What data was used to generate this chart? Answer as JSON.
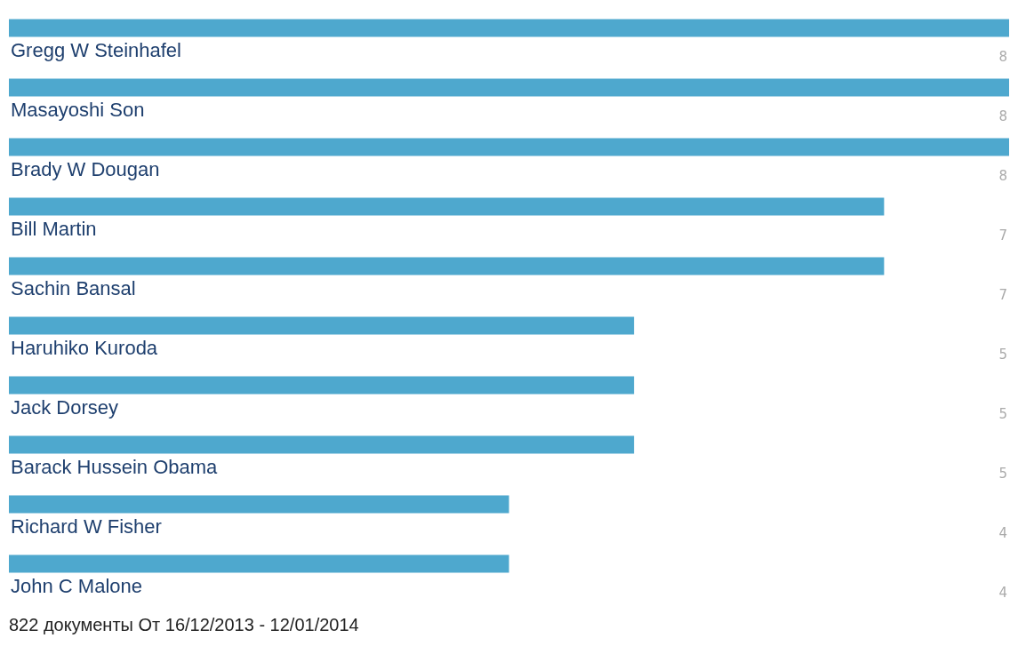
{
  "chart_data": {
    "type": "bar",
    "orientation": "horizontal",
    "categories": [
      "Gregg W Steinhafel",
      "Masayoshi Son",
      "Brady W Dougan",
      "Bill Martin",
      "Sachin Bansal",
      "Haruhiko Kuroda",
      "Jack Dorsey",
      "Barack Hussein Obama",
      "Richard W Fisher",
      "John C Malone"
    ],
    "values": [
      8,
      8,
      8,
      7,
      7,
      5,
      5,
      5,
      4,
      4
    ],
    "color": "#4ea8ce",
    "data_labels": true,
    "grid": false,
    "annotations": [
      "822 документы От 16/12/2013 - 12/01/2014"
    ]
  }
}
